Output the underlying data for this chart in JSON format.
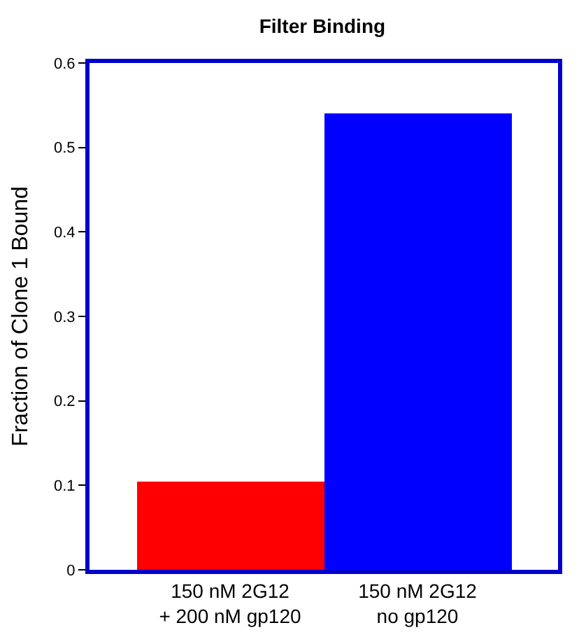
{
  "chart_data": {
    "type": "bar",
    "title": "Filter Binding",
    "ylabel": "Fraction of Clone 1 Bound",
    "categories": [
      "150 nM 2G12\n+ 200 nM gp120",
      "150 nM 2G12\nno gp120"
    ],
    "values": [
      0.105,
      0.54
    ],
    "colors": [
      "#ff0000",
      "#0000ff"
    ],
    "ylim": [
      0,
      0.6
    ],
    "yticks": [
      0,
      0.1,
      0.2,
      0.3,
      0.4,
      0.5,
      0.6
    ]
  }
}
